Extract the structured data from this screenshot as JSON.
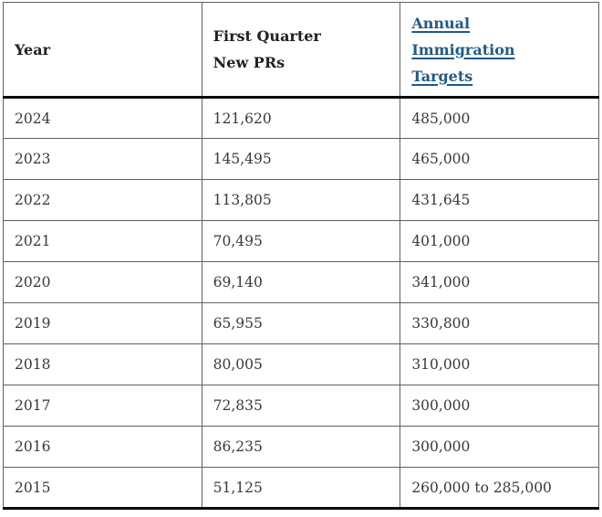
{
  "chart_data": {
    "type": "table",
    "title": "",
    "columns": [
      "Year",
      "First Quarter New PRs",
      "Annual Immigration Targets"
    ],
    "header_lines": [
      [
        "Year"
      ],
      [
        "First Quarter",
        "New PRs"
      ],
      [
        "Annual",
        "Immigration",
        "Targets"
      ]
    ],
    "link_column_index": 2,
    "rows": [
      [
        "2024",
        "121,620",
        "485,000"
      ],
      [
        "2023",
        "145,495",
        "465,000"
      ],
      [
        "2022",
        "113,805",
        "431,645"
      ],
      [
        "2021",
        "70,495",
        "401,000"
      ],
      [
        "2020",
        "69,140",
        "341,000"
      ],
      [
        "2019",
        "65,955",
        "330,800"
      ],
      [
        "2018",
        "80,005",
        "310,000"
      ],
      [
        "2017",
        "72,835",
        "300,000"
      ],
      [
        "2016",
        "86,235",
        "300,000"
      ],
      [
        "2015",
        "51,125",
        "260,000 to 285,000"
      ]
    ]
  },
  "colors": {
    "link": "#235a85",
    "body_text": "#383838",
    "header_text": "#212121",
    "inner_border": "#606060",
    "outer_border": "#4a4a4a",
    "heavy_border": "#0c0c0c"
  }
}
